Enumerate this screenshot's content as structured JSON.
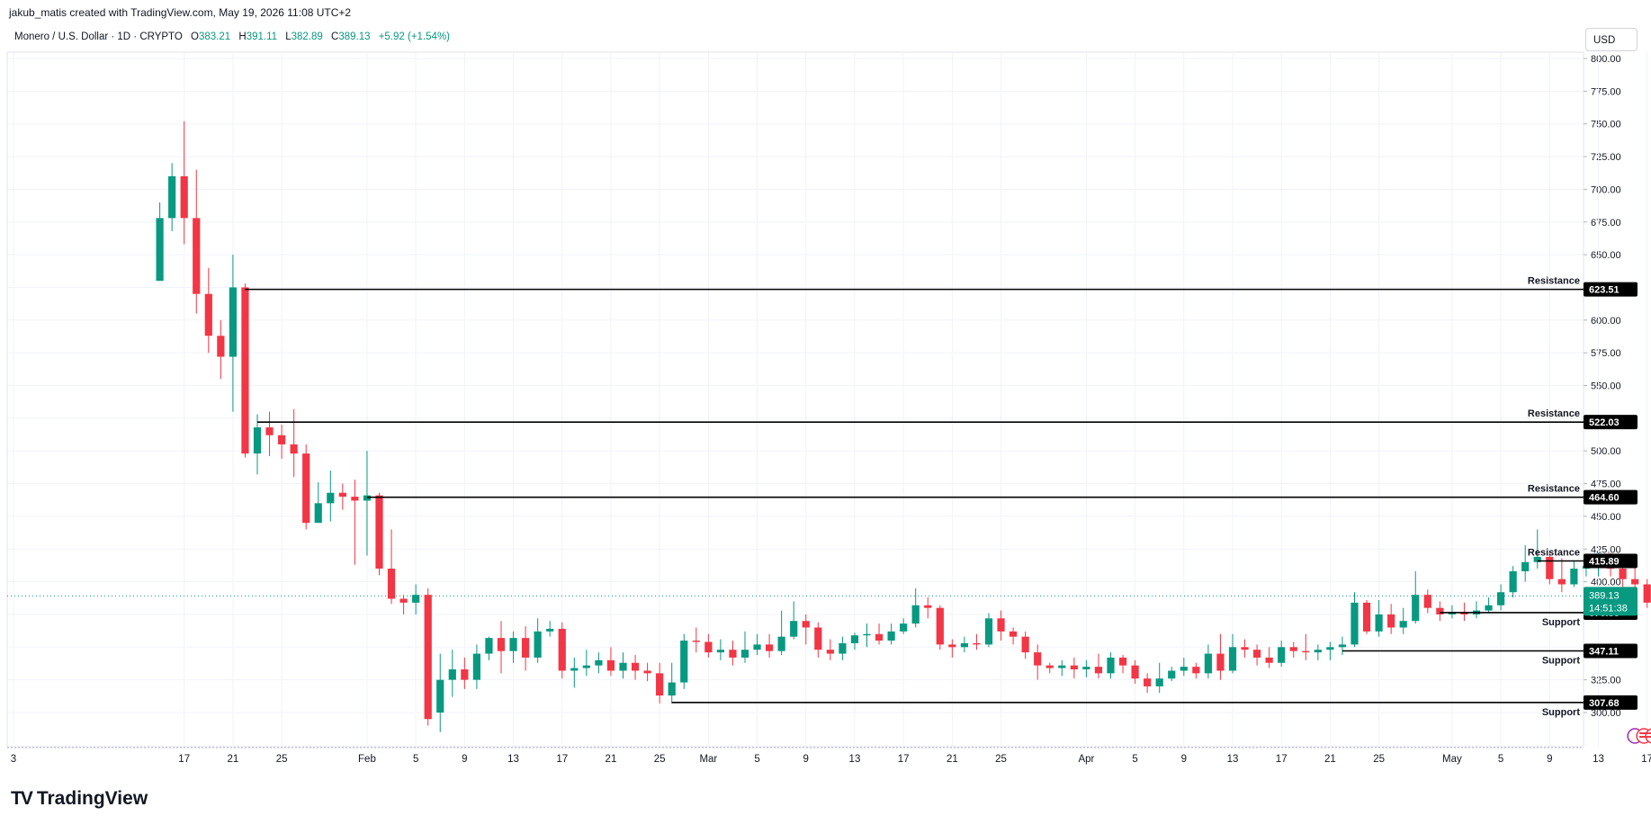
{
  "header": {
    "credit": "jakub_matis created with TradingView.com, May 19, 2026 11:08 UTC+2",
    "symbol": "Monero / U.S. Dollar · 1D · CRYPTO",
    "o_label": "O",
    "o_value": "383.21",
    "h_label": "H",
    "h_value": "391.11",
    "l_label": "L",
    "l_value": "382.89",
    "c_label": "C",
    "c_value": "389.13",
    "change": "+5.92 (+1.54%)",
    "currency": "USD"
  },
  "brand": {
    "logo": "TV",
    "name": "TradingView"
  },
  "colors": {
    "up": "#089981",
    "down": "#f23645",
    "level": "#000000",
    "grid": "#f0f3fa"
  },
  "chart_data": {
    "type": "candlestick",
    "title": "Monero / U.S. Dollar · 1D · CRYPTO",
    "ylim": [
      280,
      800
    ],
    "y_ticks": [
      "800.00",
      "775.00",
      "750.00",
      "725.00",
      "700.00",
      "675.00",
      "650.00",
      "625.00",
      "600.00",
      "575.00",
      "550.00",
      "525.00",
      "500.00",
      "475.00",
      "450.00",
      "425.00",
      "400.00",
      "375.00",
      "350.00",
      "325.00",
      "300.00"
    ],
    "y_tick_values": [
      800,
      775,
      750,
      725,
      700,
      675,
      650,
      625,
      600,
      575,
      550,
      525,
      500,
      475,
      450,
      425,
      400,
      375,
      350,
      325,
      300
    ],
    "x_ticks": [
      {
        "label": "3",
        "day": 0
      },
      {
        "label": "17",
        "day": 14
      },
      {
        "label": "21",
        "day": 18
      },
      {
        "label": "25",
        "day": 22
      },
      {
        "label": "Feb",
        "day": 29
      },
      {
        "label": "5",
        "day": 33
      },
      {
        "label": "9",
        "day": 37
      },
      {
        "label": "13",
        "day": 41
      },
      {
        "label": "17",
        "day": 45
      },
      {
        "label": "21",
        "day": 49
      },
      {
        "label": "25",
        "day": 53
      },
      {
        "label": "Mar",
        "day": 57
      },
      {
        "label": "5",
        "day": 61
      },
      {
        "label": "9",
        "day": 65
      },
      {
        "label": "13",
        "day": 69
      },
      {
        "label": "17",
        "day": 73
      },
      {
        "label": "21",
        "day": 77
      },
      {
        "label": "25",
        "day": 81
      },
      {
        "label": "Apr",
        "day": 88
      },
      {
        "label": "5",
        "day": 92
      },
      {
        "label": "9",
        "day": 96
      },
      {
        "label": "13",
        "day": 100
      },
      {
        "label": "17",
        "day": 104
      },
      {
        "label": "21",
        "day": 108
      },
      {
        "label": "25",
        "day": 112
      },
      {
        "label": "May",
        "day": 118
      },
      {
        "label": "5",
        "day": 122
      },
      {
        "label": "9",
        "day": 126
      },
      {
        "label": "13",
        "day": 130
      },
      {
        "label": "17",
        "day": 134
      },
      {
        "label": "21",
        "day": 138
      }
    ],
    "candles": [
      [
        12,
        630,
        678,
        630,
        690
      ],
      [
        13,
        678,
        710,
        668,
        720
      ],
      [
        14,
        710,
        678,
        658,
        752
      ],
      [
        15,
        678,
        620,
        605,
        715
      ],
      [
        16,
        620,
        588,
        575,
        640
      ],
      [
        17,
        588,
        572,
        555,
        600
      ],
      [
        18,
        572,
        625,
        530,
        650
      ],
      [
        19,
        625,
        498,
        495,
        628
      ],
      [
        20,
        498,
        518,
        482,
        528
      ],
      [
        21,
        518,
        512,
        496,
        530
      ],
      [
        22,
        512,
        505,
        494,
        520
      ],
      [
        23,
        505,
        498,
        480,
        532
      ],
      [
        24,
        498,
        445,
        440,
        505
      ],
      [
        25,
        445,
        460,
        450,
        476
      ],
      [
        26,
        460,
        468,
        446,
        485
      ],
      [
        27,
        468,
        465,
        455,
        475
      ],
      [
        28,
        465,
        462,
        413,
        478
      ],
      [
        29,
        462,
        466,
        420,
        500
      ],
      [
        30,
        466,
        410,
        405,
        468
      ],
      [
        31,
        410,
        387,
        383,
        440
      ],
      [
        32,
        387,
        384,
        375,
        390
      ],
      [
        33,
        384,
        390,
        375,
        398
      ],
      [
        34,
        390,
        295,
        290,
        395
      ],
      [
        35,
        300,
        325,
        285,
        345
      ],
      [
        36,
        325,
        333,
        312,
        348
      ],
      [
        37,
        333,
        325,
        318,
        342
      ],
      [
        38,
        325,
        345,
        318,
        352
      ],
      [
        39,
        345,
        357,
        340,
        358
      ],
      [
        40,
        357,
        347,
        330,
        370
      ],
      [
        41,
        347,
        357,
        338,
        362
      ],
      [
        42,
        357,
        342,
        332,
        366
      ],
      [
        43,
        342,
        362,
        338,
        372
      ],
      [
        44,
        362,
        364,
        358,
        370
      ],
      [
        45,
        364,
        332,
        326,
        369
      ],
      [
        46,
        332,
        334,
        319,
        342
      ],
      [
        47,
        334,
        336,
        328,
        348
      ],
      [
        48,
        336,
        340,
        330,
        346
      ],
      [
        49,
        340,
        332,
        328,
        350
      ],
      [
        50,
        332,
        338,
        326,
        346
      ],
      [
        51,
        338,
        332,
        325,
        344
      ],
      [
        52,
        332,
        330,
        324,
        338
      ],
      [
        53,
        330,
        313,
        307,
        338
      ],
      [
        54,
        313,
        323,
        307,
        338
      ],
      [
        55,
        323,
        355,
        318,
        360
      ],
      [
        56,
        355,
        354,
        346,
        365
      ],
      [
        57,
        354,
        346,
        342,
        360
      ],
      [
        58,
        346,
        348,
        340,
        356
      ],
      [
        59,
        348,
        342,
        336,
        355
      ],
      [
        60,
        342,
        348,
        338,
        362
      ],
      [
        61,
        348,
        352,
        344,
        360
      ],
      [
        62,
        352,
        347,
        342,
        360
      ],
      [
        63,
        347,
        358,
        344,
        378
      ],
      [
        64,
        358,
        370,
        356,
        385
      ],
      [
        65,
        370,
        365,
        352,
        375
      ],
      [
        66,
        365,
        348,
        342,
        369
      ],
      [
        67,
        348,
        345,
        340,
        356
      ],
      [
        68,
        345,
        353,
        340,
        358
      ],
      [
        69,
        353,
        359,
        348,
        361
      ],
      [
        70,
        359,
        360,
        350,
        368
      ],
      [
        71,
        360,
        355,
        352,
        368
      ],
      [
        72,
        355,
        362,
        352,
        368
      ],
      [
        73,
        362,
        368,
        360,
        372
      ],
      [
        74,
        368,
        382,
        365,
        395
      ],
      [
        75,
        382,
        380,
        372,
        388
      ],
      [
        76,
        380,
        352,
        348,
        382
      ],
      [
        77,
        352,
        350,
        342,
        356
      ],
      [
        78,
        350,
        353,
        346,
        358
      ],
      [
        79,
        353,
        352,
        348,
        360
      ],
      [
        80,
        352,
        372,
        350,
        376
      ],
      [
        81,
        372,
        362,
        355,
        378
      ],
      [
        82,
        362,
        358,
        352,
        365
      ],
      [
        83,
        358,
        346,
        341,
        362
      ],
      [
        84,
        346,
        336,
        325,
        352
      ],
      [
        85,
        336,
        334,
        330,
        338
      ],
      [
        86,
        334,
        336,
        328,
        340
      ],
      [
        87,
        336,
        333,
        326,
        342
      ],
      [
        88,
        333,
        335,
        327,
        340
      ],
      [
        89,
        335,
        330,
        326,
        345
      ],
      [
        90,
        330,
        342,
        326,
        346
      ],
      [
        91,
        342,
        336,
        330,
        344
      ],
      [
        92,
        336,
        326,
        322,
        340
      ],
      [
        93,
        326,
        320,
        315,
        330
      ],
      [
        94,
        320,
        326,
        315,
        338
      ],
      [
        95,
        326,
        332,
        324,
        335
      ],
      [
        96,
        332,
        335,
        328,
        342
      ],
      [
        97,
        335,
        330,
        326,
        338
      ],
      [
        98,
        330,
        345,
        326,
        352
      ],
      [
        99,
        345,
        332,
        325,
        360
      ],
      [
        100,
        332,
        350,
        330,
        360
      ],
      [
        101,
        350,
        348,
        342,
        356
      ],
      [
        102,
        348,
        342,
        336,
        352
      ],
      [
        103,
        342,
        338,
        334,
        350
      ],
      [
        104,
        338,
        350,
        335,
        355
      ],
      [
        105,
        350,
        347,
        342,
        354
      ],
      [
        106,
        347,
        346,
        340,
        360
      ],
      [
        107,
        346,
        348,
        340,
        352
      ],
      [
        108,
        348,
        350,
        340,
        354
      ],
      [
        109,
        350,
        352,
        344,
        358
      ],
      [
        110,
        352,
        384,
        350,
        392
      ],
      [
        111,
        384,
        362,
        360,
        386
      ],
      [
        112,
        362,
        375,
        358,
        386
      ],
      [
        113,
        375,
        365,
        360,
        383
      ],
      [
        114,
        365,
        370,
        360,
        380
      ],
      [
        115,
        370,
        390,
        368,
        408
      ],
      [
        116,
        390,
        380,
        376,
        394
      ],
      [
        117,
        380,
        375,
        370,
        385
      ],
      [
        118,
        375,
        377,
        372,
        382
      ],
      [
        119,
        377,
        375,
        370,
        384
      ],
      [
        120,
        375,
        378,
        372,
        385
      ],
      [
        121,
        378,
        382,
        376,
        388
      ],
      [
        122,
        382,
        392,
        378,
        398
      ],
      [
        123,
        392,
        408,
        388,
        412
      ],
      [
        124,
        408,
        415,
        400,
        428
      ],
      [
        125,
        415,
        419,
        410,
        440
      ],
      [
        126,
        419,
        402,
        398,
        422
      ],
      [
        127,
        402,
        398,
        392,
        418
      ],
      [
        128,
        398,
        410,
        396,
        416
      ],
      [
        129,
        410,
        412,
        404,
        416
      ],
      [
        130,
        412,
        418,
        404,
        422
      ],
      [
        131,
        418,
        410,
        404,
        422
      ],
      [
        132,
        410,
        402,
        396,
        418
      ],
      [
        133,
        402,
        398,
        392,
        412
      ],
      [
        134,
        398,
        384,
        380,
        402
      ],
      [
        135,
        384,
        390,
        382,
        394
      ],
      [
        136,
        390,
        389,
        384,
        396
      ],
      [
        137,
        389,
        383,
        380,
        392
      ],
      [
        138,
        383,
        389,
        383,
        391
      ]
    ],
    "levels": [
      {
        "label": "Resistance",
        "value": 623.51,
        "value_text": "623.51",
        "start_day": 19
      },
      {
        "label": "Resistance",
        "value": 522.03,
        "value_text": "522.03",
        "start_day": 20
      },
      {
        "label": "Resistance",
        "value": 464.6,
        "value_text": "464.60",
        "start_day": 29
      },
      {
        "label": "Resistance",
        "value": 415.89,
        "value_text": "415.89",
        "start_day": 125
      },
      {
        "label": "Support",
        "value": 376.36,
        "value_text": "376.36",
        "start_day": 117
      },
      {
        "label": "Support",
        "value": 347.11,
        "value_text": "347.11",
        "start_day": 109
      },
      {
        "label": "Support",
        "value": 307.68,
        "value_text": "307.68",
        "start_day": 54
      }
    ],
    "last_price": {
      "value": 389.13,
      "value_text": "389.13",
      "countdown": "14:51:38"
    }
  }
}
